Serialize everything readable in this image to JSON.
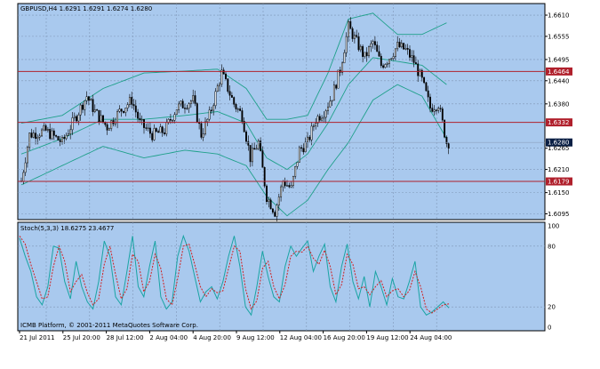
{
  "window": {
    "symbol_header": "GBPUSD,H4  1.6291 1.6291 1.6274 1.6280",
    "indicator_header": "Stoch(5,3,3) 18.6275 23.4677",
    "copyright": "ICMB Platform, © 2001-2011 MetaQuotes Software Corp."
  },
  "colors": {
    "background": "#a9c9ee",
    "grid": "#7f97b7",
    "candle": "#000000",
    "bands": "#1fa08a",
    "level_lines": "#b0202c",
    "level_label_bg": "#b0202c",
    "current_price_bg": "#0a1f44",
    "stoch_main": "#1aa4a4",
    "stoch_signal": "#d02020"
  },
  "chart_data": [
    {
      "type": "candlestick",
      "title": "GBPUSD,H4",
      "ohlc_header": "1.6291 1.6291 1.6274 1.6280",
      "y_axis_ticks": [
        "1.6610",
        "1.6555",
        "1.6495",
        "1.6440",
        "1.6380",
        "1.6265",
        "1.6210",
        "1.6150",
        "1.6095"
      ],
      "ylim": [
        1.608,
        1.664
      ],
      "x_axis_ticks": [
        "21 Jul 2011",
        "25 Jul 20:00",
        "28 Jul 12:00",
        "2 Aug 04:00",
        "4 Aug 20:00",
        "9 Aug 12:00",
        "12 Aug 04:00",
        "16 Aug 20:00",
        "19 Aug 12:00",
        "24 Aug 04:00"
      ],
      "horizontal_levels": [
        {
          "label": "1.6464",
          "value": 1.6464
        },
        {
          "label": "1.6332",
          "value": 1.6332
        },
        {
          "label": "1.6179",
          "value": 1.6179
        }
      ],
      "current_price": {
        "label": "1.6280",
        "value": 1.628
      },
      "price_path": [
        [
          0,
          1.618
        ],
        [
          4,
          1.63
        ],
        [
          12,
          1.631
        ],
        [
          20,
          1.628
        ],
        [
          26,
          1.634
        ],
        [
          32,
          1.64
        ],
        [
          36,
          1.636
        ],
        [
          42,
          1.632
        ],
        [
          48,
          1.636
        ],
        [
          54,
          1.639
        ],
        [
          58,
          1.633
        ],
        [
          64,
          1.63
        ],
        [
          70,
          1.631
        ],
        [
          76,
          1.637
        ],
        [
          84,
          1.639
        ],
        [
          88,
          1.63
        ],
        [
          92,
          1.635
        ],
        [
          98,
          1.646
        ],
        [
          104,
          1.638
        ],
        [
          108,
          1.635
        ],
        [
          112,
          1.624
        ],
        [
          116,
          1.628
        ],
        [
          120,
          1.614
        ],
        [
          124,
          1.61
        ],
        [
          128,
          1.618
        ],
        [
          132,
          1.616
        ],
        [
          136,
          1.626
        ],
        [
          140,
          1.628
        ],
        [
          144,
          1.634
        ],
        [
          148,
          1.636
        ],
        [
          152,
          1.64
        ],
        [
          156,
          1.647
        ],
        [
          160,
          1.658
        ],
        [
          164,
          1.654
        ],
        [
          168,
          1.65
        ],
        [
          172,
          1.654
        ],
        [
          176,
          1.648
        ],
        [
          180,
          1.65
        ],
        [
          184,
          1.653
        ],
        [
          188,
          1.652
        ],
        [
          192,
          1.649
        ],
        [
          196,
          1.644
        ],
        [
          200,
          1.637
        ],
        [
          204,
          1.638
        ],
        [
          208,
          1.628
        ]
      ],
      "bollinger_upper_path": [
        [
          0,
          1.633
        ],
        [
          20,
          1.635
        ],
        [
          40,
          1.642
        ],
        [
          60,
          1.646
        ],
        [
          80,
          1.6465
        ],
        [
          96,
          1.647
        ],
        [
          110,
          1.642
        ],
        [
          120,
          1.634
        ],
        [
          130,
          1.634
        ],
        [
          140,
          1.635
        ],
        [
          150,
          1.646
        ],
        [
          160,
          1.66
        ],
        [
          172,
          1.6615
        ],
        [
          184,
          1.656
        ],
        [
          196,
          1.656
        ],
        [
          208,
          1.659
        ]
      ],
      "bollinger_middle_path": [
        [
          0,
          1.625
        ],
        [
          20,
          1.629
        ],
        [
          40,
          1.634
        ],
        [
          60,
          1.634
        ],
        [
          80,
          1.635
        ],
        [
          96,
          1.636
        ],
        [
          110,
          1.633
        ],
        [
          120,
          1.624
        ],
        [
          130,
          1.621
        ],
        [
          140,
          1.625
        ],
        [
          150,
          1.633
        ],
        [
          160,
          1.643
        ],
        [
          172,
          1.65
        ],
        [
          184,
          1.649
        ],
        [
          196,
          1.648
        ],
        [
          208,
          1.643
        ]
      ],
      "bollinger_lower_path": [
        [
          0,
          1.617
        ],
        [
          20,
          1.622
        ],
        [
          40,
          1.627
        ],
        [
          60,
          1.624
        ],
        [
          80,
          1.626
        ],
        [
          96,
          1.625
        ],
        [
          110,
          1.622
        ],
        [
          120,
          1.614
        ],
        [
          130,
          1.609
        ],
        [
          140,
          1.613
        ],
        [
          150,
          1.621
        ],
        [
          160,
          1.628
        ],
        [
          172,
          1.639
        ],
        [
          184,
          1.643
        ],
        [
          196,
          1.64
        ],
        [
          208,
          1.629
        ]
      ],
      "bar_count": 210
    },
    {
      "type": "line",
      "title": "Stoch(5,3,3) 18.6275 23.4677",
      "y_axis_ticks": [
        "100",
        "80",
        "20",
        "0"
      ],
      "ylim": [
        0,
        100
      ],
      "levels": [
        80,
        20
      ],
      "series": [
        {
          "name": "Stoch(5,3,3)",
          "values": [
            88,
            70,
            55,
            30,
            22,
            40,
            80,
            78,
            45,
            28,
            65,
            40,
            25,
            18,
            45,
            85,
            70,
            30,
            22,
            55,
            90,
            40,
            30,
            60,
            85,
            30,
            18,
            25,
            70,
            90,
            75,
            50,
            25,
            35,
            40,
            28,
            45,
            70,
            90,
            60,
            20,
            12,
            40,
            75,
            50,
            30,
            25,
            60,
            80,
            70,
            78,
            85,
            55,
            70,
            82,
            40,
            25,
            60,
            82,
            45,
            28,
            50,
            20,
            55,
            40,
            22,
            48,
            30,
            28,
            45,
            65,
            20,
            12,
            15,
            20,
            25,
            19
          ]
        },
        {
          "name": "signal",
          "values": [
            90,
            82,
            62,
            45,
            28,
            30,
            60,
            80,
            65,
            35,
            45,
            52,
            34,
            22,
            28,
            62,
            80,
            52,
            28,
            38,
            72,
            65,
            35,
            45,
            72,
            58,
            28,
            22,
            48,
            80,
            82,
            62,
            40,
            30,
            38,
            34,
            36,
            58,
            80,
            75,
            38,
            18,
            26,
            58,
            65,
            40,
            28,
            42,
            70,
            75,
            74,
            80,
            68,
            62,
            76,
            60,
            32,
            42,
            72,
            62,
            38,
            40,
            32,
            40,
            46,
            30,
            36,
            38,
            30,
            36,
            55,
            40,
            18,
            14,
            18,
            22,
            23
          ]
        }
      ]
    }
  ]
}
